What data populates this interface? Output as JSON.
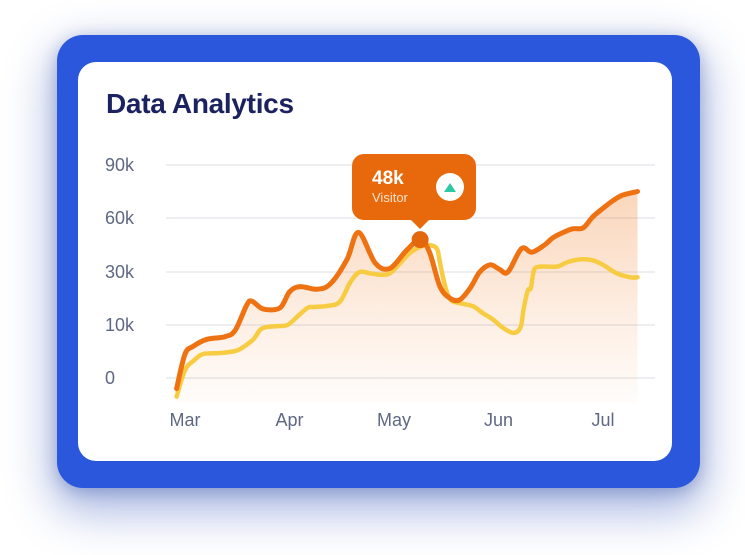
{
  "card": {
    "title": "Data Analytics"
  },
  "tooltip": {
    "value": "48k",
    "label": "Visitor",
    "trend": "up"
  },
  "colors": {
    "frame_blue": "#2A57DB",
    "card_bg": "#FFFFFF",
    "title_navy": "#1C2260",
    "axis_label": "#5F6883",
    "gridline": "#EDEEF2",
    "series_current": "#EE7112",
    "series_compare": "#F8CC42",
    "area_fill": "#EE7112",
    "marker_dot": "#E2670D",
    "tooltip_bg": "#E8690B",
    "trend_green": "#2FC8A5"
  },
  "chart_data": {
    "type": "area",
    "title": "Data Analytics",
    "xlabel": "",
    "ylabel": "",
    "x_tick_labels": [
      "Mar",
      "Apr",
      "May",
      "Jun",
      "Jul"
    ],
    "y_tick_labels": [
      "90k",
      "60k",
      "30k",
      "10k",
      "0"
    ],
    "y_tick_values_thousands": [
      90,
      60,
      30,
      10,
      0
    ],
    "grid": "horizontal-only",
    "legend": "none",
    "x_unit": "months_from_Mar",
    "y_unit": "visitors_thousands",
    "series": [
      {
        "name": "visitors-current",
        "style": "orange-line-with-gradient-area",
        "points": [
          [
            -0.08,
            -2
          ],
          [
            0,
            4.5
          ],
          [
            0.08,
            6
          ],
          [
            0.21,
            7.3
          ],
          [
            0.38,
            7.8
          ],
          [
            0.48,
            9
          ],
          [
            0.59,
            17.5
          ],
          [
            0.64,
            19
          ],
          [
            0.75,
            16
          ],
          [
            0.91,
            16.5
          ],
          [
            1.0,
            22.5
          ],
          [
            1.1,
            24.5
          ],
          [
            1.26,
            23.5
          ],
          [
            1.39,
            25.5
          ],
          [
            1.55,
            37
          ],
          [
            1.66,
            52
          ],
          [
            1.82,
            35
          ],
          [
            1.96,
            32
          ],
          [
            2.12,
            42
          ],
          [
            2.25,
            48
          ],
          [
            2.34,
            41
          ],
          [
            2.44,
            24.5
          ],
          [
            2.54,
            20
          ],
          [
            2.63,
            19.5
          ],
          [
            2.73,
            24
          ],
          [
            2.82,
            30
          ],
          [
            2.92,
            34
          ],
          [
            3.01,
            31.5
          ],
          [
            3.09,
            30
          ],
          [
            3.22,
            43
          ],
          [
            3.32,
            41
          ],
          [
            3.44,
            45
          ],
          [
            3.52,
            49
          ],
          [
            3.62,
            52
          ],
          [
            3.71,
            54
          ],
          [
            3.81,
            54.5
          ],
          [
            3.9,
            60.5
          ],
          [
            4.0,
            65.5
          ],
          [
            4.1,
            70
          ],
          [
            4.19,
            73
          ],
          [
            4.33,
            75
          ]
        ]
      },
      {
        "name": "visitors-compare",
        "style": "yellow-line",
        "points": [
          [
            -0.08,
            -3.5
          ],
          [
            0,
            1.5
          ],
          [
            0.08,
            3.2
          ],
          [
            0.17,
            4.5
          ],
          [
            0.33,
            4.7
          ],
          [
            0.46,
            5
          ],
          [
            0.53,
            5.5
          ],
          [
            0.65,
            7.2
          ],
          [
            0.72,
            9.1
          ],
          [
            0.78,
            9.6
          ],
          [
            0.88,
            9.8
          ],
          [
            0.98,
            10
          ],
          [
            1.07,
            13
          ],
          [
            1.17,
            16.4
          ],
          [
            1.22,
            16.8
          ],
          [
            1.36,
            17.2
          ],
          [
            1.48,
            18.7
          ],
          [
            1.58,
            26
          ],
          [
            1.67,
            30
          ],
          [
            1.77,
            29.5
          ],
          [
            1.87,
            29
          ],
          [
            1.96,
            29.5
          ],
          [
            2.06,
            35
          ],
          [
            2.15,
            40.5
          ],
          [
            2.25,
            44
          ],
          [
            2.33,
            45
          ],
          [
            2.41,
            43
          ],
          [
            2.44,
            35
          ],
          [
            2.48,
            26
          ],
          [
            2.52,
            21
          ],
          [
            2.56,
            19
          ],
          [
            2.66,
            18
          ],
          [
            2.76,
            17
          ],
          [
            2.85,
            14.5
          ],
          [
            2.95,
            12
          ],
          [
            3.04,
            9.5
          ],
          [
            3.14,
            8.5
          ],
          [
            3.21,
            9.5
          ],
          [
            3.24,
            16
          ],
          [
            3.28,
            23
          ],
          [
            3.31,
            24
          ],
          [
            3.34,
            31
          ],
          [
            3.4,
            33
          ],
          [
            3.56,
            33
          ],
          [
            3.66,
            35.5
          ],
          [
            3.78,
            37
          ],
          [
            3.9,
            36.5
          ],
          [
            4.0,
            34
          ],
          [
            4.13,
            29.5
          ],
          [
            4.26,
            28
          ],
          [
            4.33,
            28
          ]
        ]
      }
    ],
    "marker": {
      "x_months_from_mar": 2.25,
      "value_thousands": 48,
      "series": "visitors-current"
    }
  }
}
